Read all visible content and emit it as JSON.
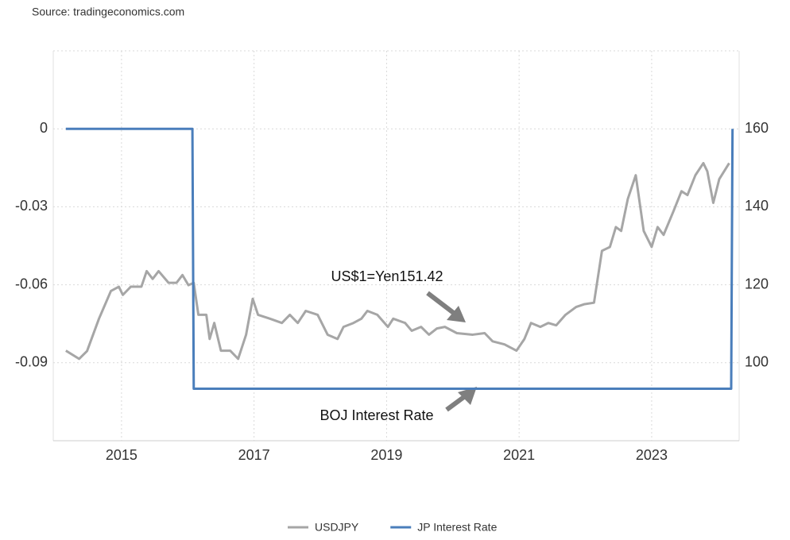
{
  "chart_data": {
    "type": "line",
    "source": "Source: tradingeconomics.com",
    "annotations": [
      "US$1=Yen151.42",
      "BOJ Interest Rate"
    ],
    "xlim": [
      2013.97,
      2024.32
    ],
    "xticks": [
      2015,
      2017,
      2019,
      2021,
      2023
    ],
    "ylim": [
      -0.12,
      0.03
    ],
    "yticks": [
      0,
      -0.03,
      -0.06,
      -0.09
    ],
    "y2lim": [
      80,
      180
    ],
    "y2ticks": [
      100,
      120,
      140,
      160
    ],
    "grid": true,
    "legend": "bottom",
    "series": [
      {
        "name": "USDJPY",
        "color": "#a6a6a6",
        "axis": "y2",
        "x": [
          2014.16,
          2014.36,
          2014.48,
          2014.66,
          2014.84,
          2014.96,
          2015.02,
          2015.14,
          2015.3,
          2015.38,
          2015.47,
          2015.56,
          2015.71,
          2015.83,
          2015.92,
          2016.01,
          2016.09,
          2016.16,
          2016.28,
          2016.33,
          2016.4,
          2016.5,
          2016.64,
          2016.76,
          2016.88,
          2016.98,
          2017.06,
          2017.24,
          2017.42,
          2017.54,
          2017.66,
          2017.78,
          2017.96,
          2018.11,
          2018.26,
          2018.35,
          2018.5,
          2018.62,
          2018.71,
          2018.86,
          2019.02,
          2019.1,
          2019.28,
          2019.38,
          2019.52,
          2019.64,
          2019.76,
          2019.88,
          2020.06,
          2020.3,
          2020.48,
          2020.6,
          2020.78,
          2020.96,
          2021.08,
          2021.18,
          2021.32,
          2021.44,
          2021.56,
          2021.7,
          2021.86,
          2021.98,
          2022.13,
          2022.25,
          2022.37,
          2022.46,
          2022.54,
          2022.64,
          2022.76,
          2022.88,
          2023.0,
          2023.09,
          2023.18,
          2023.33,
          2023.45,
          2023.54,
          2023.66,
          2023.78,
          2023.84,
          2023.93,
          2024.02,
          2024.17
        ],
        "values": [
          103.1,
          101,
          103,
          111.3,
          118.4,
          119.5,
          117.4,
          119.5,
          119.5,
          123.5,
          121.5,
          123.5,
          120.5,
          120.5,
          122.5,
          119.9,
          120.5,
          112.3,
          112.3,
          106.1,
          110.2,
          103.1,
          103.1,
          101,
          107.2,
          116.4,
          112.3,
          111.3,
          110.2,
          112.3,
          110.2,
          113.3,
          112.3,
          107.2,
          106.1,
          109.2,
          110.2,
          111.3,
          113.3,
          112.3,
          109.2,
          111.3,
          110.2,
          108.2,
          109.2,
          107.2,
          108.8,
          109.2,
          107.6,
          107.2,
          107.6,
          105.5,
          104.7,
          103.1,
          106.1,
          110.2,
          109.2,
          110.2,
          109.6,
          112.3,
          114.3,
          115,
          115.4,
          128.7,
          129.7,
          134.8,
          133.8,
          142,
          148.1,
          133.8,
          129.7,
          134.8,
          132.8,
          138.9,
          144,
          143,
          148.1,
          151.2,
          149.1,
          141,
          147.1,
          151.2
        ]
      },
      {
        "name": "JP Interest Rate",
        "color": "#4a7ebb",
        "x": [
          2014.16,
          2016.07,
          2016.09,
          2024.2,
          2024.22
        ],
        "values": [
          0,
          0,
          -0.1,
          -0.1,
          0
        ]
      }
    ]
  }
}
